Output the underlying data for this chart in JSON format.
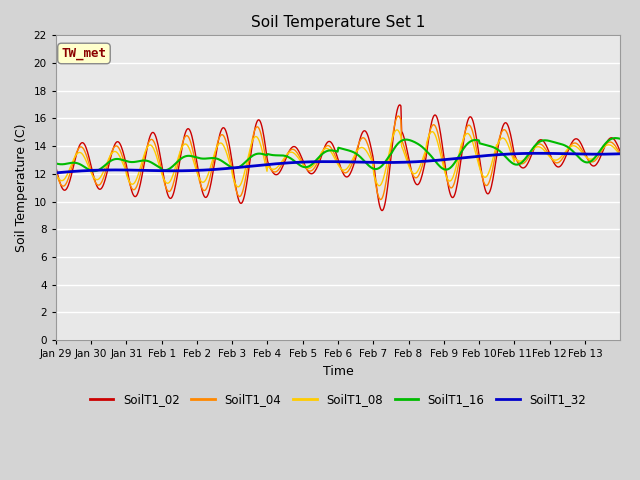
{
  "title": "Soil Temperature Set 1",
  "xlabel": "Time",
  "ylabel": "Soil Temperature (C)",
  "ylim": [
    0,
    22
  ],
  "yticks": [
    0,
    2,
    4,
    6,
    8,
    10,
    12,
    14,
    16,
    18,
    20,
    22
  ],
  "xtick_labels": [
    "Jan 29",
    "Jan 30",
    "Jan 31",
    "Feb 1",
    "Feb 2",
    "Feb 3",
    "Feb 4",
    "Feb 5",
    "Feb 6",
    "Feb 7",
    "Feb 8",
    "Feb 9",
    "Feb 10",
    "Feb 11",
    "Feb 12",
    "Feb 13"
  ],
  "fig_bg_color": "#d4d4d4",
  "plot_bg_color": "#e8e8e8",
  "annotation_text": "TW_met",
  "annotation_color": "#8b0000",
  "annotation_bg": "#ffffcc",
  "series_colors": {
    "SoilT1_02": "#cc0000",
    "SoilT1_04": "#ff8800",
    "SoilT1_08": "#ffcc00",
    "SoilT1_16": "#00bb00",
    "SoilT1_32": "#0000cc"
  },
  "legend_labels": [
    "SoilT1_02",
    "SoilT1_04",
    "SoilT1_08",
    "SoilT1_16",
    "SoilT1_32"
  ]
}
